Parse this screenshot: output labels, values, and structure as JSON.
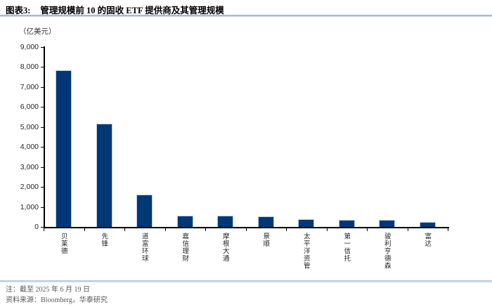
{
  "header": {
    "figure_label": "图表3:",
    "title": "管理规模前 10 的固收 ETF 提供商及其管理规模"
  },
  "unit_label": "（亿美元）",
  "chart_data": {
    "type": "bar",
    "title": "管理规模前 10 的固收 ETF 提供商及其管理规模",
    "categories": [
      "贝莱德",
      "先锋",
      "道富环球",
      "嘉信理财",
      "摩根大通",
      "景顺",
      "太平洋资管",
      "第一信托",
      "骏利亨德森",
      "富达"
    ],
    "values": [
      7840,
      5160,
      1600,
      570,
      550,
      540,
      390,
      350,
      350,
      230
    ],
    "xlabel": "",
    "ylabel": "亿美元",
    "ylim": [
      0,
      9000
    ],
    "ytick_step": 1000,
    "grid": false,
    "legend": false,
    "bar_color": "#003876",
    "bar_border_color": "#b7cbe3",
    "axis_color": "#000000"
  },
  "footer": {
    "note": "注：截至 2025 年 6 月 19 日",
    "source": "资料来源：Bloomberg，华泰研究"
  }
}
